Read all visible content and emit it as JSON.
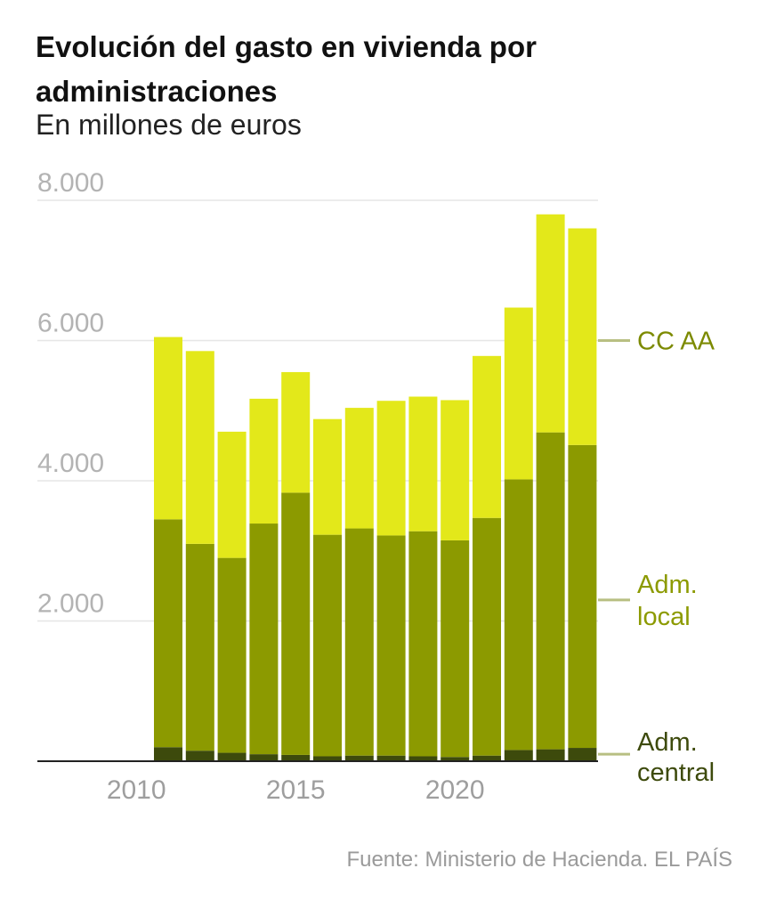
{
  "header": {
    "title": "Evolución del gasto en vivienda por administraciones",
    "subtitle": "En millones de euros"
  },
  "footer": {
    "source": "Fuente: Ministerio de Hacienda. EL PAÍS"
  },
  "colors": {
    "central": "#3d4a0c",
    "local": "#8c9a00",
    "ccaa": "#e3e81a",
    "grid": "#e6e6e6",
    "leader": "#b8bf82",
    "label_ccaa": "#7c8a00",
    "label_local": "#8c9a00",
    "label_central": "#3d4a0c"
  },
  "chart_data": {
    "type": "bar",
    "stacked": true,
    "x": [
      2011,
      2012,
      2013,
      2014,
      2015,
      2016,
      2017,
      2018,
      2019,
      2020,
      2021,
      2022,
      2023,
      2024
    ],
    "series": [
      {
        "name": "Adm. central",
        "values": [
          200,
          150,
          120,
          100,
          90,
          70,
          80,
          80,
          70,
          60,
          80,
          160,
          170,
          190
        ]
      },
      {
        "name": "Adm. local",
        "values": [
          3250,
          2950,
          2780,
          3290,
          3740,
          3160,
          3240,
          3140,
          3210,
          3090,
          3390,
          3860,
          4520,
          4320
        ]
      },
      {
        "name": "CC AA",
        "values": [
          2600,
          2750,
          1800,
          1780,
          1720,
          1650,
          1720,
          1920,
          1920,
          2000,
          2310,
          2450,
          3110,
          3090
        ]
      }
    ],
    "yticks": [
      "8.000",
      "6.000",
      "4.000",
      "2.000"
    ],
    "ytick_values": [
      8000,
      6000,
      4000,
      2000
    ],
    "xticks": [
      "2010",
      "2015",
      "2020"
    ],
    "xtick_values": [
      2010,
      2015,
      2020
    ],
    "ylim": [
      0,
      8000
    ],
    "xlabel": "",
    "ylabel": "",
    "legend": [
      {
        "lines": [
          "CC AA"
        ],
        "anchor_value": 6000
      },
      {
        "lines": [
          "Adm.",
          "local"
        ],
        "anchor_value": 2300
      },
      {
        "lines": [
          "Adm.",
          "central"
        ],
        "anchor_value": 100
      }
    ]
  }
}
